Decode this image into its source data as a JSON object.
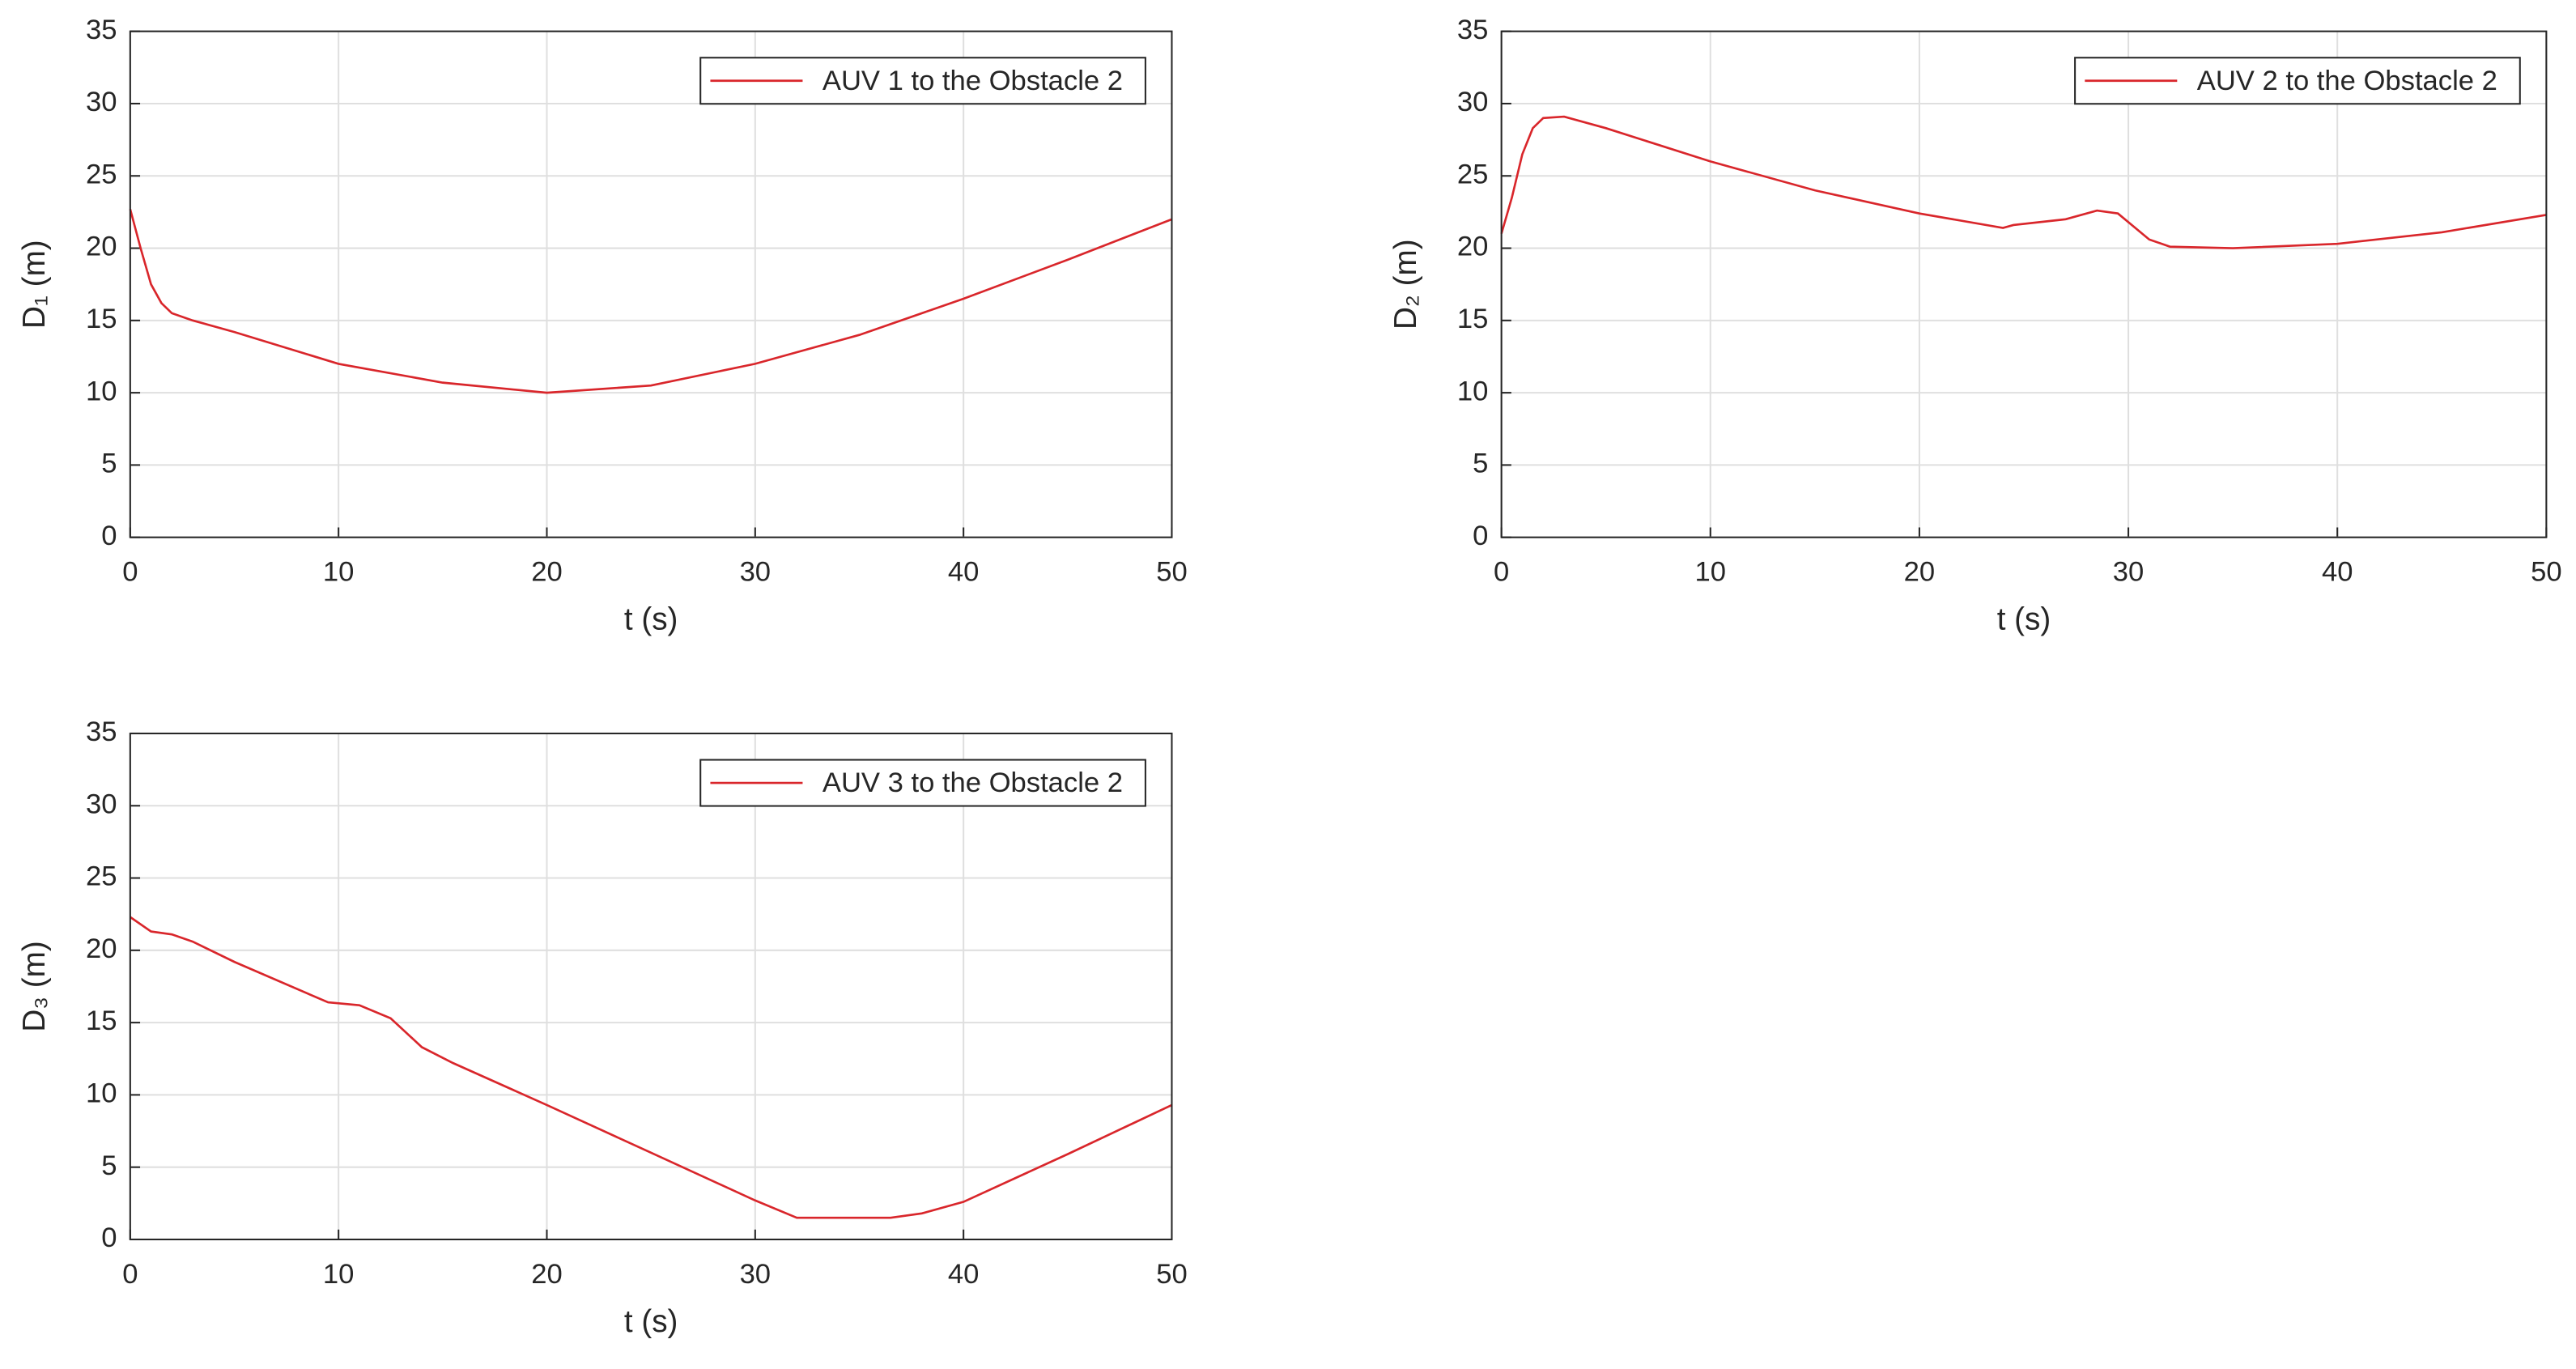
{
  "chart_data": [
    {
      "type": "line",
      "xlabel": "t (s)",
      "ylabel": "D₁ (m)",
      "xlim": [
        0,
        50
      ],
      "ylim": [
        0,
        35
      ],
      "xticks": [
        0,
        10,
        20,
        30,
        40,
        50
      ],
      "yticks": [
        0,
        5,
        10,
        15,
        20,
        25,
        30,
        35
      ],
      "grid": true,
      "legend": "northeast",
      "series": [
        {
          "name": "AUV 1 to the Obstacle 2",
          "color": "#d9262b",
          "x": [
            0,
            0.5,
            1,
            1.5,
            2,
            3,
            5,
            10,
            15,
            20,
            25,
            30,
            35,
            40,
            45,
            50
          ],
          "values": [
            22.7,
            20,
            17.5,
            16.2,
            15.5,
            15,
            14.2,
            12,
            10.7,
            10,
            10.5,
            12,
            14,
            16.5,
            19.2,
            22
          ]
        }
      ]
    },
    {
      "type": "line",
      "xlabel": "t (s)",
      "ylabel": "D₂ (m)",
      "xlim": [
        0,
        50
      ],
      "ylim": [
        0,
        35
      ],
      "xticks": [
        0,
        10,
        20,
        30,
        40,
        50
      ],
      "yticks": [
        0,
        5,
        10,
        15,
        20,
        25,
        30,
        35
      ],
      "grid": true,
      "legend": "northeast",
      "series": [
        {
          "name": "AUV 2 to the Obstacle 2",
          "color": "#d9262b",
          "x": [
            0,
            0.5,
            1,
            1.5,
            2,
            3,
            5,
            10,
            15,
            20,
            24,
            24.5,
            27,
            28.5,
            29.5,
            31,
            32,
            35,
            40,
            45,
            50
          ],
          "values": [
            21,
            23.5,
            26.5,
            28.3,
            29,
            29.1,
            28.3,
            26,
            24,
            22.4,
            21.4,
            21.6,
            22,
            22.6,
            22.4,
            20.6,
            20.1,
            20,
            20.3,
            21.1,
            22.3
          ]
        }
      ]
    },
    {
      "type": "line",
      "xlabel": "t (s)",
      "ylabel": "D₃ (m)",
      "xlim": [
        0,
        50
      ],
      "ylim": [
        0,
        35
      ],
      "xticks": [
        0,
        10,
        20,
        30,
        40,
        50
      ],
      "yticks": [
        0,
        5,
        10,
        15,
        20,
        25,
        30,
        35
      ],
      "grid": true,
      "legend": "northeast",
      "series": [
        {
          "name": "AUV 3 to the Obstacle 2",
          "color": "#d9262b",
          "x": [
            0,
            1,
            2,
            3,
            5,
            9.5,
            11,
            12.5,
            14,
            15.5,
            20,
            25,
            30,
            32,
            36.5,
            38,
            40,
            45,
            50
          ],
          "values": [
            22.3,
            21.3,
            21.1,
            20.6,
            19.2,
            16.4,
            16.2,
            15.3,
            13.3,
            12.2,
            9.3,
            6,
            2.7,
            1.5,
            1.5,
            1.8,
            2.6,
            5.9,
            9.3
          ]
        }
      ]
    }
  ]
}
